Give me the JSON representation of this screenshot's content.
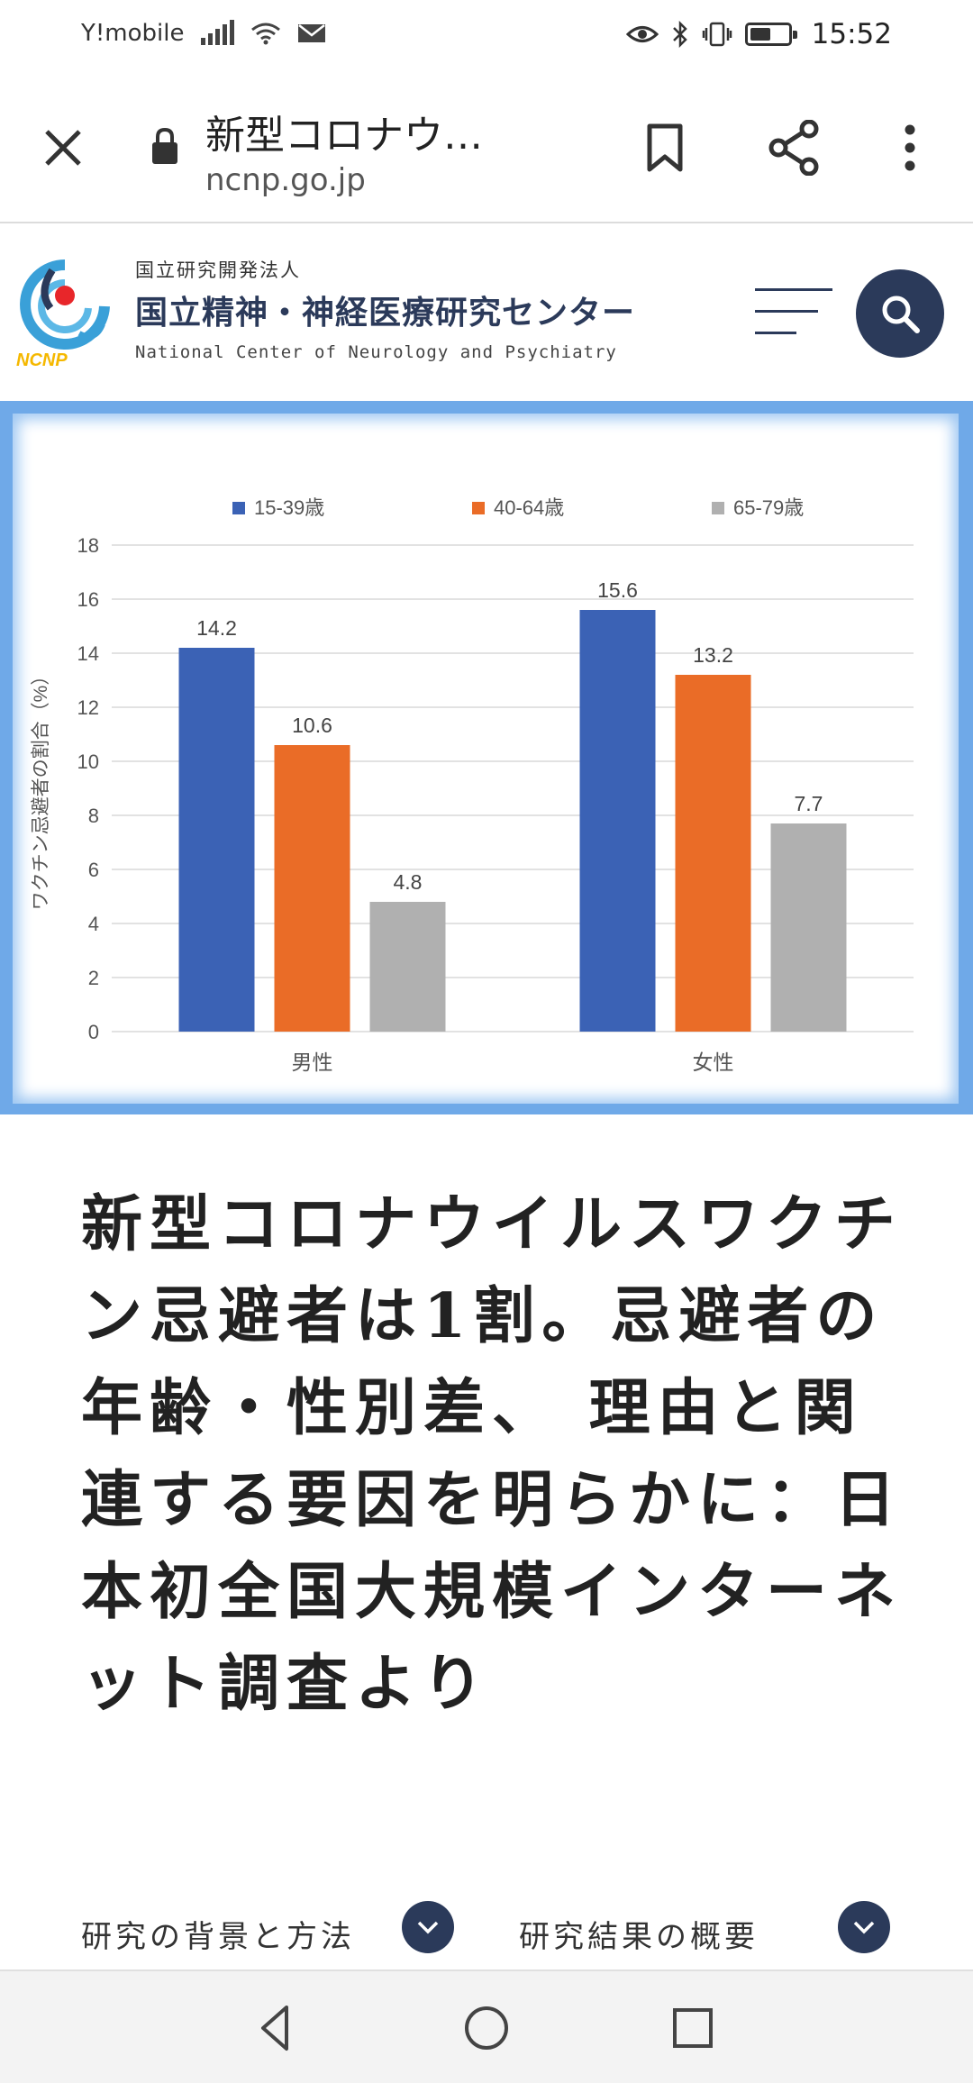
{
  "status_bar": {
    "carrier": "Y!mobile",
    "time": "15:52",
    "battery_level": 0.55,
    "icons": [
      "signal-icon",
      "wifi-icon",
      "mail-icon",
      "eye-icon",
      "bluetooth-icon",
      "vibrate-icon",
      "battery-icon"
    ]
  },
  "browser": {
    "page_title": "新型コロナウ…",
    "url": "ncnp.go.jp",
    "icons": [
      "close-icon",
      "lock-icon",
      "bookmark-icon",
      "share-icon",
      "more-vert-icon"
    ]
  },
  "site_header": {
    "logo_text": "NCNP",
    "kicker": "国立研究開発法人",
    "name": "国立精神・神経医療研究センター",
    "name_en": "National Center of Neurology and Psychiatry",
    "icons": [
      "ncnp-logo-icon",
      "menu-icon",
      "search-icon"
    ]
  },
  "chart_data": {
    "type": "bar",
    "title": "",
    "categories": [
      "男性",
      "女性"
    ],
    "series": [
      {
        "name": "15-39歳",
        "values": [
          14.2,
          15.6
        ],
        "color": "#3b62b5"
      },
      {
        "name": "40-64歳",
        "values": [
          10.6,
          13.2
        ],
        "color": "#ea6c27"
      },
      {
        "name": "65-79歳",
        "values": [
          4.8,
          7.7
        ],
        "color": "#b0b0b0"
      }
    ],
    "xlabel": "",
    "ylabel": "ワクチン忌避者の割合（%）",
    "ylim": [
      0,
      18
    ],
    "yticks": [
      0,
      2,
      4,
      6,
      8,
      10,
      12,
      14,
      16,
      18
    ],
    "grid": true,
    "legend_position": "top"
  },
  "article": {
    "title": "新型コロナウイルスワクチン忌避者は1割。忌避者の年齢・性別差、 理由と関連する要因を明らかに：日本初全国大規模インターネット調査より"
  },
  "section_nav": {
    "items": [
      {
        "label": "研究の背景と方法",
        "icon": "chevron-down-icon"
      },
      {
        "label": "研究結果の概要",
        "icon": "chevron-down-icon"
      }
    ]
  },
  "system_nav": {
    "icons": [
      "back-icon",
      "home-icon",
      "recents-icon"
    ]
  }
}
